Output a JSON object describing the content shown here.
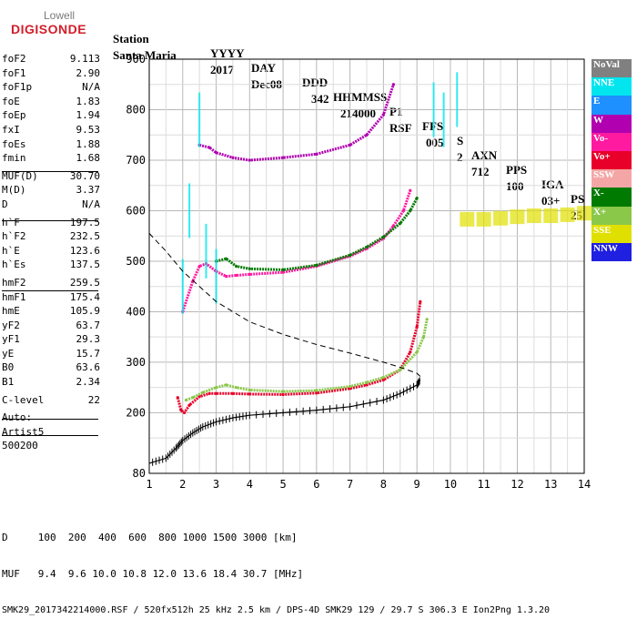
{
  "logo": {
    "top": "Lowell",
    "bottom": "DIGISONDE"
  },
  "header": {
    "labels": [
      "Station",
      "YYYY",
      "DAY",
      "DDD",
      "HHMMSS",
      "P1",
      "FFS",
      "S",
      "AXN",
      "PPS",
      "IGA",
      "PS"
    ],
    "values": [
      "Santa Maria",
      "2017",
      "Dec08",
      "342",
      "214000",
      "RSF",
      "005",
      "2",
      "712",
      "100",
      "03+",
      "25"
    ]
  },
  "params": [
    {
      "k": "foF2",
      "v": "9.113"
    },
    {
      "k": "foF1",
      "v": "2.90"
    },
    {
      "k": "foF1p",
      "v": "N/A"
    },
    {
      "k": "foE",
      "v": "1.83"
    },
    {
      "k": "foEp",
      "v": "1.94"
    },
    {
      "k": "fxI",
      "v": "9.53"
    },
    {
      "k": "foEs",
      "v": "1.88"
    },
    {
      "k": "fmin",
      "v": "1.68"
    },
    {
      "k": "MUF(D)",
      "v": "30.70"
    },
    {
      "k": "M(D)",
      "v": "3.37"
    },
    {
      "k": "D",
      "v": "N/A"
    },
    {
      "k": "h`F",
      "v": "197.5"
    },
    {
      "k": "h`F2",
      "v": "232.5"
    },
    {
      "k": "h`E",
      "v": "123.6"
    },
    {
      "k": "h`Es",
      "v": "137.5"
    },
    {
      "k": "hmF2",
      "v": "259.5"
    },
    {
      "k": "hmF1",
      "v": "175.4"
    },
    {
      "k": "hmE",
      "v": "105.9"
    },
    {
      "k": "yF2",
      "v": "63.7"
    },
    {
      "k": "yF1",
      "v": "29.3"
    },
    {
      "k": "yE",
      "v": "15.7"
    },
    {
      "k": "B0",
      "v": "63.6"
    },
    {
      "k": "B1",
      "v": "2.34"
    },
    {
      "k": "C-level",
      "v": "22"
    }
  ],
  "auto": {
    "line1": "Auto:",
    "line2": "Artist5",
    "line3": "500200"
  },
  "legend": [
    {
      "label": "NoVal",
      "color": "#808080"
    },
    {
      "label": "NNE",
      "color": "#00e5ee"
    },
    {
      "label": "E",
      "color": "#1e90ff"
    },
    {
      "label": "W",
      "color": "#b000b0"
    },
    {
      "label": "Vo-",
      "color": "#ff1aa0"
    },
    {
      "label": "Vo+",
      "color": "#e8002a"
    },
    {
      "label": "SSW",
      "color": "#f4a6a6"
    },
    {
      "label": "X-",
      "color": "#007a00"
    },
    {
      "label": "X+",
      "color": "#8ac84a"
    },
    {
      "label": "SSE",
      "color": "#e0e000"
    },
    {
      "label": "NNW",
      "color": "#2020e0"
    }
  ],
  "footer": {
    "row1": "D     100  200  400  600  800 1000 1500 3000 [km]",
    "row2": "MUF   9.4  9.6 10.0 10.8 12.0 13.6 18.4 30.7 [MHz]",
    "row3": "SMK29_2017342214000.RSF / 520fx512h 25 kHz 2.5 km / DPS-4D SMK29 129 / 29.7 S 306.3 E Ion2Png 1.3.20"
  },
  "chart_data": {
    "type": "scatter",
    "xlim": [
      1,
      14
    ],
    "ylim": [
      80,
      900
    ],
    "xticks": [
      1,
      2,
      3,
      4,
      5,
      6,
      7,
      8,
      9,
      10,
      11,
      12,
      13,
      14
    ],
    "yticks": [
      80,
      200,
      300,
      400,
      500,
      600,
      700,
      800,
      900
    ],
    "grid": true,
    "legend_position": "right",
    "series": [
      {
        "name": "Vo+",
        "x": [
          1.85,
          1.95,
          2.05,
          2.2,
          2.5,
          2.8,
          3.0,
          3.5,
          4.0,
          5.0,
          6.0,
          7.0,
          7.5,
          8.0,
          8.5,
          8.8,
          9.0,
          9.1
        ],
        "y": [
          230,
          205,
          200,
          215,
          232,
          238,
          238,
          238,
          237,
          236,
          239,
          248,
          255,
          265,
          285,
          320,
          370,
          420
        ]
      },
      {
        "name": "X+",
        "x": [
          2.1,
          2.3,
          2.6,
          3.0,
          3.3,
          3.6,
          4.0,
          5.0,
          6.0,
          7.0,
          7.5,
          8.0,
          8.5,
          9.0,
          9.2,
          9.3
        ],
        "y": [
          225,
          230,
          240,
          250,
          255,
          250,
          245,
          242,
          244,
          252,
          260,
          270,
          285,
          320,
          350,
          385
        ]
      },
      {
        "name": "Vo-",
        "x": [
          2.0,
          2.3,
          2.5,
          2.7,
          3.0,
          3.3,
          3.6,
          4.0,
          5.0,
          6.0,
          7.0,
          7.5,
          8.0,
          8.3,
          8.6,
          8.8
        ],
        "y": [
          400,
          460,
          490,
          495,
          480,
          470,
          472,
          474,
          478,
          490,
          510,
          525,
          545,
          570,
          600,
          640
        ]
      },
      {
        "name": "X-",
        "x": [
          3.0,
          3.3,
          3.6,
          4.0,
          5.0,
          6.0,
          7.0,
          7.5,
          8.0,
          8.5,
          8.8,
          9.0
        ],
        "y": [
          500,
          505,
          490,
          485,
          483,
          492,
          512,
          528,
          548,
          575,
          600,
          625
        ]
      },
      {
        "name": "W",
        "x": [
          2.5,
          2.8,
          3.0,
          3.5,
          4.0,
          5.0,
          6.0,
          7.0,
          7.5,
          8.0,
          8.3
        ],
        "y": [
          730,
          725,
          715,
          705,
          700,
          705,
          712,
          730,
          750,
          790,
          850
        ]
      },
      {
        "name": "NNE",
        "x": [
          2.0,
          2.2,
          2.5,
          2.7,
          3.0,
          9.5,
          9.8,
          10.2
        ],
        "y": [
          450,
          600,
          780,
          520,
          470,
          800,
          780,
          820
        ]
      },
      {
        "name": "SSE",
        "x": [
          10.5,
          11.0,
          11.5,
          12.0,
          12.5,
          13.0,
          13.5,
          14.0
        ],
        "y": [
          583,
          583,
          585,
          588,
          590,
          590,
          592,
          595
        ]
      }
    ],
    "profile": {
      "name": "True height profile",
      "x": [
        1.0,
        1.5,
        1.8,
        2.0,
        2.3,
        2.6,
        3.0,
        3.5,
        4.0,
        5.0,
        6.0,
        7.0,
        8.0,
        8.5,
        9.0,
        9.1
      ],
      "y": [
        100,
        110,
        130,
        145,
        160,
        172,
        182,
        190,
        195,
        200,
        205,
        212,
        225,
        238,
        255,
        265
      ]
    },
    "muf_curve": {
      "name": "MUF curve",
      "x": [
        1.0,
        1.5,
        2.0,
        2.5,
        3.0,
        4.0,
        5.0,
        6.0,
        7.0,
        8.0,
        8.5,
        9.0,
        9.1
      ],
      "y": [
        555,
        520,
        480,
        450,
        420,
        380,
        355,
        335,
        318,
        300,
        290,
        278,
        272
      ]
    }
  }
}
